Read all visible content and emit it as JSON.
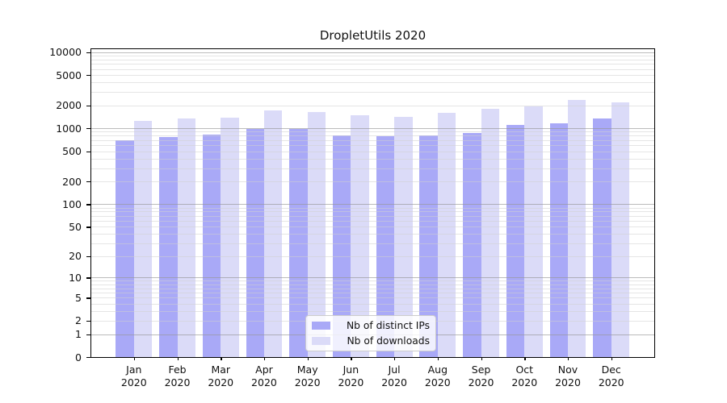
{
  "chart_data": {
    "type": "bar",
    "title": "DropletUtils 2020",
    "categories": [
      "Jan",
      "Feb",
      "Mar",
      "Apr",
      "May",
      "Jun",
      "Jul",
      "Aug",
      "Sep",
      "Oct",
      "Nov",
      "Dec"
    ],
    "year_label": "2020",
    "series": [
      {
        "name": "Nb of distinct IPs",
        "color": "#a9a9f7",
        "values": [
          700,
          770,
          820,
          970,
          990,
          810,
          790,
          810,
          860,
          1110,
          1170,
          1350
        ]
      },
      {
        "name": "Nb of downloads",
        "color": "#dbdbf8",
        "values": [
          1260,
          1340,
          1390,
          1700,
          1640,
          1500,
          1400,
          1580,
          1780,
          1940,
          2350,
          2200
        ]
      }
    ],
    "yscale": "log10(1+x)",
    "y_ticks": [
      0,
      1,
      2,
      5,
      10,
      20,
      50,
      100,
      200,
      500,
      1000,
      2000,
      5000,
      10000
    ],
    "ylim": [
      0,
      11000
    ],
    "grid": true,
    "legend_position": "lower center"
  }
}
